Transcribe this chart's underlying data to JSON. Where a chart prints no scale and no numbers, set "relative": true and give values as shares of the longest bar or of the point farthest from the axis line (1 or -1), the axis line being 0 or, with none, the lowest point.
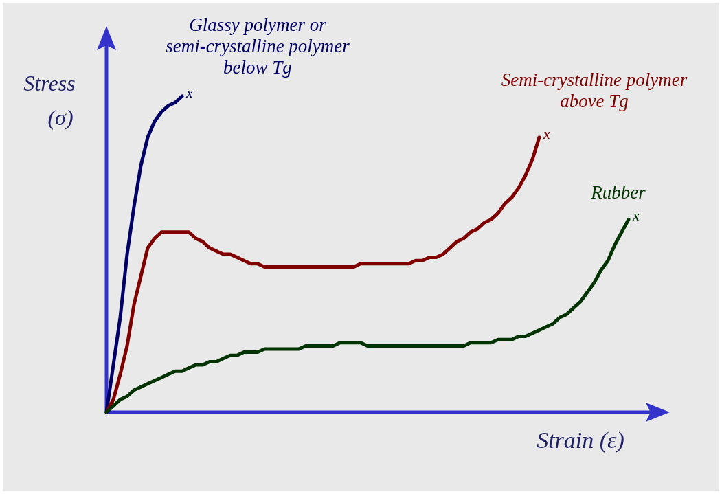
{
  "chart_data": {
    "type": "line",
    "relative": true,
    "xlabel": "Strain (ε)",
    "ylabel": "Stress\n(σ)",
    "categories": [
      null,
      null,
      null,
      null,
      null,
      null,
      null,
      null,
      null,
      null,
      null,
      null,
      null,
      null,
      null,
      null,
      null,
      null,
      null,
      null,
      null,
      null,
      null,
      null,
      null,
      null,
      null,
      null,
      null,
      null,
      null,
      null,
      null,
      null,
      null,
      null,
      null,
      null,
      null,
      null,
      null,
      null,
      null,
      null,
      null,
      null,
      null,
      null,
      null,
      null,
      null,
      null,
      null,
      null,
      null,
      null,
      null,
      null,
      null,
      null,
      null,
      null,
      null,
      null,
      null,
      null,
      null,
      null,
      null,
      null,
      null,
      null,
      null,
      null,
      null,
      null,
      null
    ],
    "series": [
      {
        "name": "Glassy polymer or\nsemi-crystalline polymer\nbelow Tg",
        "color": "#000066",
        "values": [
          0,
          0.15,
          0.3,
          0.5,
          0.65,
          0.78,
          0.87,
          0.92,
          0.95,
          0.97,
          0.98,
          1.0,
          null,
          null,
          null,
          null,
          null,
          null,
          null,
          null,
          null,
          null,
          null,
          null,
          null,
          null,
          null,
          null,
          null,
          null,
          null,
          null,
          null,
          null,
          null,
          null,
          null,
          null,
          null,
          null,
          null,
          null,
          null,
          null,
          null,
          null,
          null,
          null,
          null,
          null,
          null,
          null,
          null,
          null,
          null,
          null,
          null,
          null,
          null,
          null,
          null,
          null,
          null,
          null,
          null,
          null,
          null,
          null,
          null,
          null,
          null,
          null,
          null,
          null,
          null,
          null,
          null
        ]
      },
      {
        "name": "Semi-crystalline polymer\nabove Tg",
        "color": "#800000",
        "values": [
          0,
          0.04,
          0.12,
          0.21,
          0.34,
          0.43,
          0.52,
          0.55,
          0.57,
          0.57,
          0.57,
          0.57,
          0.57,
          0.55,
          0.54,
          0.52,
          0.51,
          0.5,
          0.5,
          0.49,
          0.48,
          0.47,
          0.47,
          0.46,
          0.46,
          0.46,
          0.46,
          0.46,
          0.46,
          0.46,
          0.46,
          0.46,
          0.46,
          0.46,
          0.46,
          0.46,
          0.46,
          0.47,
          0.47,
          0.47,
          0.47,
          0.47,
          0.47,
          0.47,
          0.47,
          0.48,
          0.48,
          0.49,
          0.49,
          0.5,
          0.52,
          0.54,
          0.55,
          0.57,
          0.58,
          0.6,
          0.61,
          0.63,
          0.66,
          0.68,
          0.71,
          0.75,
          0.8,
          0.87,
          null,
          null,
          null,
          null,
          null,
          null,
          null,
          null,
          null,
          null,
          null,
          null,
          null
        ]
      },
      {
        "name": "Rubber",
        "color": "#003300",
        "values": [
          0,
          0.02,
          0.04,
          0.05,
          0.07,
          0.08,
          0.09,
          0.1,
          0.11,
          0.12,
          0.13,
          0.13,
          0.14,
          0.15,
          0.15,
          0.16,
          0.16,
          0.17,
          0.18,
          0.18,
          0.19,
          0.19,
          0.19,
          0.2,
          0.2,
          0.2,
          0.2,
          0.2,
          0.2,
          0.21,
          0.21,
          0.21,
          0.21,
          0.21,
          0.22,
          0.22,
          0.22,
          0.22,
          0.21,
          0.21,
          0.21,
          0.21,
          0.21,
          0.21,
          0.21,
          0.21,
          0.21,
          0.21,
          0.21,
          0.21,
          0.21,
          0.21,
          0.21,
          0.22,
          0.22,
          0.22,
          0.22,
          0.23,
          0.23,
          0.23,
          0.24,
          0.24,
          0.25,
          0.26,
          0.27,
          0.28,
          0.3,
          0.31,
          0.33,
          0.35,
          0.38,
          0.41,
          0.45,
          0.48,
          0.53,
          0.57,
          0.61
        ]
      }
    ],
    "annotations": [
      "x",
      "x",
      "x"
    ]
  }
}
